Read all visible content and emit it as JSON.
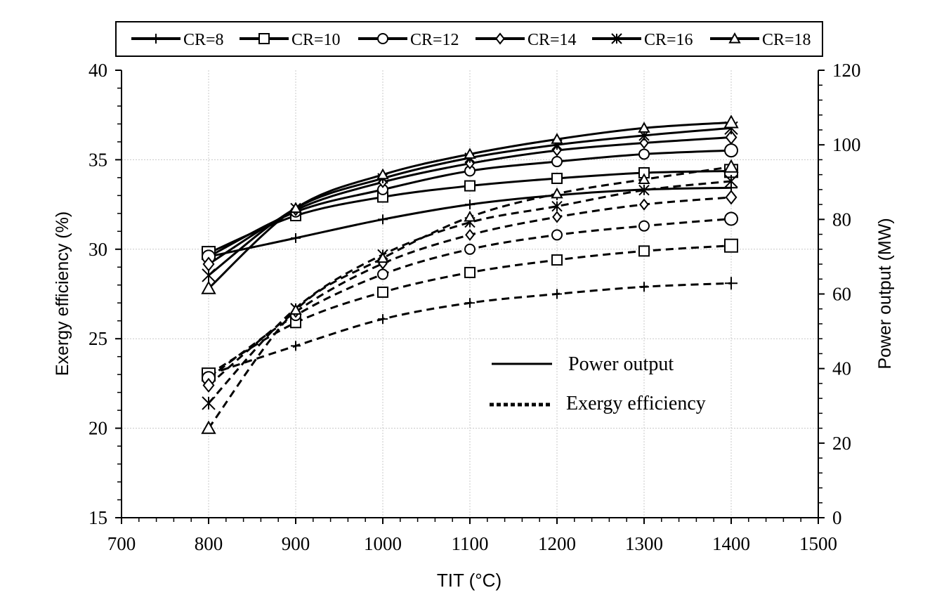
{
  "chart_data": {
    "type": "line",
    "title": "",
    "xlabel": "TIT (°C)",
    "ylabel_left": "Exergy efficiency (%)",
    "ylabel_right": "Power output (MW)",
    "xlim": [
      700,
      1500
    ],
    "ylim_left": [
      15,
      40
    ],
    "ylim_right": [
      0,
      120
    ],
    "x_ticks": [
      700,
      800,
      900,
      1000,
      1100,
      1200,
      1300,
      1400,
      1500
    ],
    "y_left_ticks": [
      15,
      20,
      25,
      30,
      35,
      40
    ],
    "y_right_ticks": [
      0,
      20,
      40,
      60,
      80,
      100,
      120
    ],
    "grid": true,
    "legend_placement": "top",
    "legend_entries": [
      "CR=8",
      "CR=10",
      "CR=12",
      "CR=14",
      "CR=16",
      "CR=18"
    ],
    "style_legend": {
      "solid_label": "Power output",
      "dashed_label": "Exergy efficiency"
    },
    "x": [
      800,
      900,
      1000,
      1100,
      1200,
      1300,
      1400
    ],
    "power_output_series": [
      {
        "name": "CR=8",
        "marker": "plus",
        "axis": "right",
        "values": [
          70.0,
          75.0,
          80.0,
          84.0,
          86.5,
          88.0,
          88.5
        ]
      },
      {
        "name": "CR=10",
        "marker": "square",
        "axis": "right",
        "values": [
          71.0,
          81.0,
          86.0,
          89.0,
          91.0,
          92.5,
          93.0
        ]
      },
      {
        "name": "CR=12",
        "marker": "circle",
        "axis": "right",
        "values": [
          70.0,
          82.0,
          88.0,
          93.0,
          95.5,
          97.5,
          98.5
        ]
      },
      {
        "name": "CR=14",
        "marker": "diamond",
        "axis": "right",
        "values": [
          68.0,
          82.5,
          90.0,
          95.0,
          98.5,
          100.5,
          102.0
        ]
      },
      {
        "name": "CR=16",
        "marker": "asterisk",
        "axis": "right",
        "values": [
          65.0,
          83.0,
          91.0,
          96.5,
          100.0,
          102.5,
          104.5
        ]
      },
      {
        "name": "CR=18",
        "marker": "triangle",
        "axis": "right",
        "values": [
          61.5,
          83.0,
          92.0,
          97.5,
          101.5,
          104.5,
          106.0
        ]
      }
    ],
    "exergy_efficiency_series": [
      {
        "name": "CR=8",
        "marker": "plus",
        "axis": "left",
        "values": [
          23.0,
          24.6,
          26.1,
          27.0,
          27.5,
          27.9,
          28.1
        ]
      },
      {
        "name": "CR=10",
        "marker": "square",
        "axis": "left",
        "values": [
          23.0,
          25.9,
          27.6,
          28.7,
          29.4,
          29.9,
          30.2
        ]
      },
      {
        "name": "CR=12",
        "marker": "circle",
        "axis": "left",
        "values": [
          22.8,
          26.3,
          28.6,
          30.0,
          30.8,
          31.3,
          31.7
        ]
      },
      {
        "name": "CR=14",
        "marker": "diamond",
        "axis": "left",
        "values": [
          22.4,
          26.5,
          29.2,
          30.8,
          31.8,
          32.5,
          32.9
        ]
      },
      {
        "name": "CR=16",
        "marker": "asterisk",
        "axis": "left",
        "values": [
          21.4,
          26.7,
          29.7,
          31.5,
          32.4,
          33.3,
          33.8
        ]
      },
      {
        "name": "CR=18",
        "marker": "triangle",
        "axis": "left",
        "values": [
          20.0,
          26.6,
          29.5,
          31.8,
          33.1,
          33.9,
          34.6
        ]
      }
    ]
  }
}
